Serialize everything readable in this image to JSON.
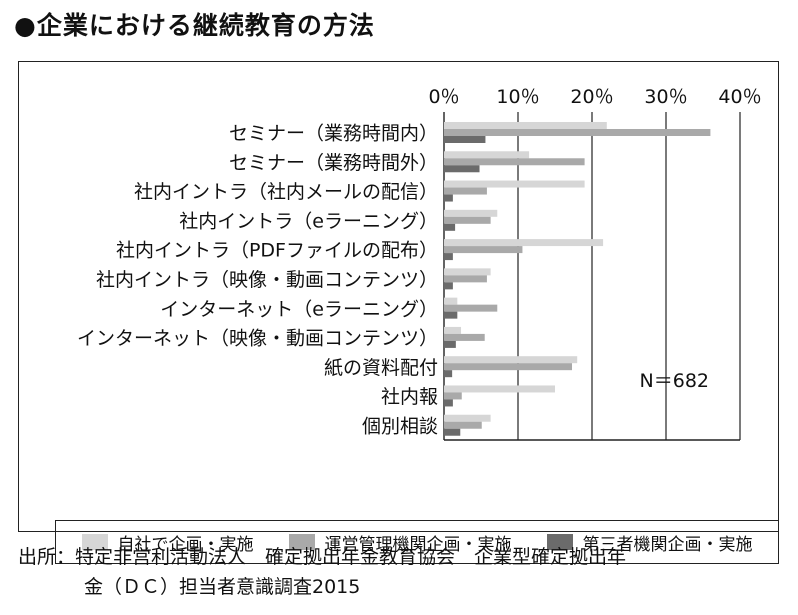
{
  "title": "●企業における継続教育の方法",
  "source": {
    "line1": "出所：特定非営利活動法人　確定拠出年金教育協会　企業型確定拠出年",
    "line2": "金（ＤＣ）担当者意識調査2015"
  },
  "chart_data": {
    "type": "bar",
    "orientation": "horizontal",
    "xlim": [
      0,
      40
    ],
    "ticks": [
      "0％",
      "10％",
      "20％",
      "30％",
      "40％"
    ],
    "tick_values": [
      0,
      10,
      20,
      30,
      40
    ],
    "annotation": "N＝682",
    "categories": [
      "セミナー（業務時間内）",
      "セミナー（業務時間外）",
      "社内イントラ（社内メールの配信）",
      "社内イントラ（eラーニング）",
      "社内イントラ（PDFファイルの配布）",
      "社内イントラ（映像・動画コンテンツ）",
      "インターネット（eラーニング）",
      "インターネット（映像・動画コンテンツ）",
      "紙の資料配付",
      "社内報",
      "個別相談"
    ],
    "series": [
      {
        "name": "自社で企画・実施",
        "color": "#d6d6d6",
        "values": [
          22,
          11.5,
          19,
          7.2,
          21.5,
          6.3,
          1.8,
          2.3,
          18,
          15,
          6.3
        ]
      },
      {
        "name": "運営管理機関企画・実施",
        "color": "#a9a9a9",
        "values": [
          36,
          19,
          5.8,
          6.3,
          10.6,
          5.8,
          7.2,
          5.5,
          17.3,
          2.4,
          5.1
        ]
      },
      {
        "name": "第三者機関企画・実施",
        "color": "#6b6b6b",
        "values": [
          5.6,
          4.8,
          1.2,
          1.5,
          1.2,
          1.2,
          1.8,
          1.6,
          1.1,
          1.2,
          2.2
        ]
      }
    ],
    "grid": true,
    "legend_position": "bottom"
  }
}
